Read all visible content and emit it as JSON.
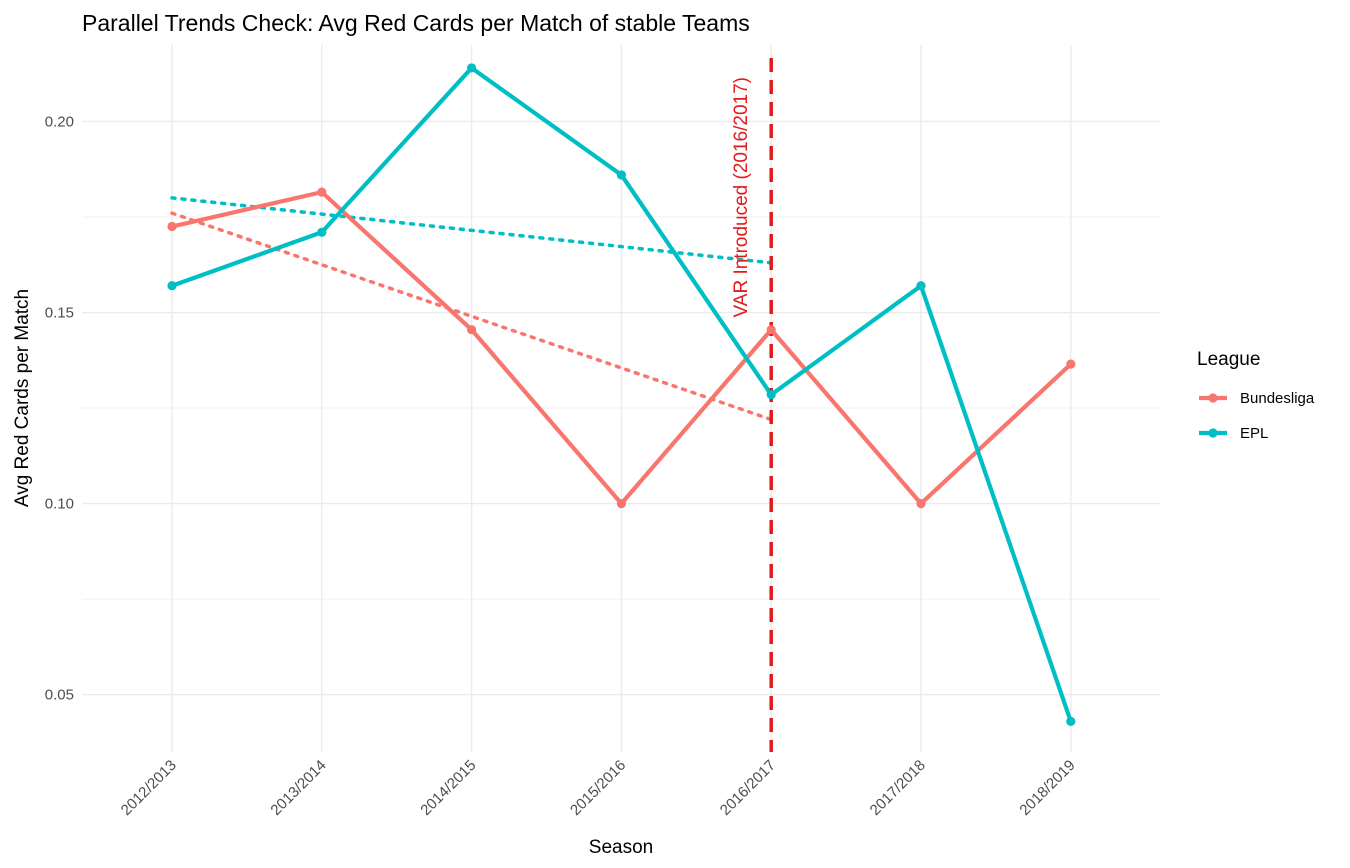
{
  "chart_data": {
    "type": "line",
    "title": "Parallel Trends Check: Avg Red Cards per Match of stable Teams",
    "xlabel": "Season",
    "ylabel": "Avg Red Cards per Match",
    "categories": [
      "2012/2013",
      "2013/2014",
      "2014/2015",
      "2015/2016",
      "2016/2017",
      "2017/2018",
      "2018/2019"
    ],
    "ylim": [
      0.035,
      0.22
    ],
    "yticks": [
      0.05,
      0.1,
      0.15,
      0.2
    ],
    "ytick_labels": [
      "0.05",
      "0.10",
      "0.15",
      "0.20"
    ],
    "grid": true,
    "legend": {
      "title": "League",
      "position": "right"
    },
    "series": [
      {
        "name": "Bundesliga",
        "color": "#F8766D",
        "values": [
          0.1725,
          0.1815,
          0.1455,
          0.1,
          0.1455,
          0.1,
          0.1365
        ]
      },
      {
        "name": "EPL",
        "color": "#00BFC4",
        "values": [
          0.157,
          0.171,
          0.214,
          0.186,
          0.1285,
          0.157,
          0.043
        ]
      }
    ],
    "trend_lines": [
      {
        "series": "Bundesliga",
        "color": "#F8766D",
        "style": "dotted",
        "x_range": [
          "2012/2013",
          "2016/2017"
        ],
        "y": [
          0.176,
          0.122
        ]
      },
      {
        "series": "EPL",
        "color": "#00BFC4",
        "style": "dotted",
        "x_range": [
          "2012/2013",
          "2016/2017"
        ],
        "y": [
          0.18,
          0.163
        ]
      }
    ],
    "vline": {
      "x": "2016/2017",
      "color": "#E31A1C",
      "style": "dashed",
      "label": "VAR Introduced (2016/2017)"
    }
  }
}
